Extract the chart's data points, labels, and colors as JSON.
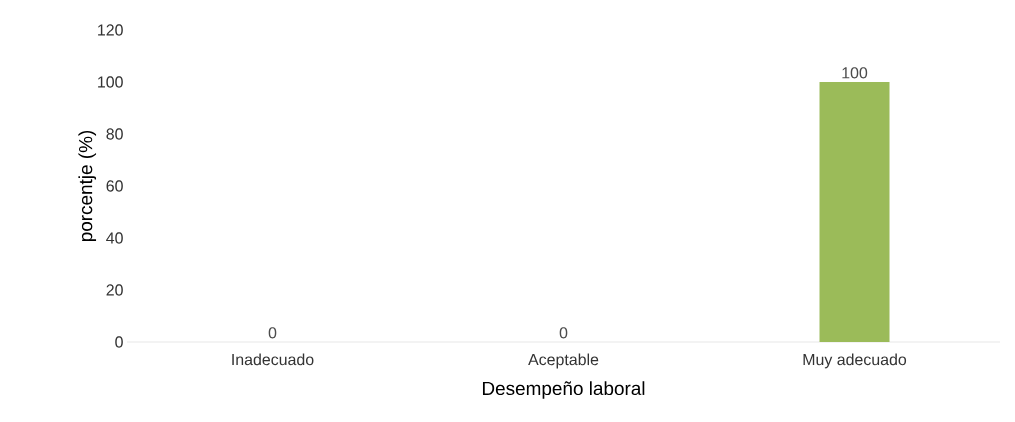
{
  "chart_data": {
    "type": "bar",
    "categories": [
      "Inadecuado",
      "Aceptable",
      "Muy adecuado"
    ],
    "values": [
      0,
      0,
      100
    ],
    "color": "#9bbb59",
    "xlabel": "Desempeño laboral",
    "ylabel": "porcentje (%)",
    "ylim": [
      0,
      120
    ],
    "yticks": [
      0,
      20,
      40,
      60,
      80,
      100,
      120
    ],
    "data_labels": true
  }
}
